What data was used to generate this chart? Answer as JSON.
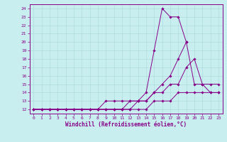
{
  "xlabel": "Windchill (Refroidissement éolien,°C)",
  "background_color": "#c8eef0",
  "grid_color": "#b0dde0",
  "line_color": "#880088",
  "ylim": [
    11.5,
    24.5
  ],
  "xlim": [
    -0.5,
    23.5
  ],
  "yticks": [
    12,
    13,
    14,
    15,
    16,
    17,
    18,
    19,
    20,
    21,
    22,
    23,
    24
  ],
  "xticks": [
    0,
    1,
    2,
    3,
    4,
    5,
    6,
    7,
    8,
    9,
    10,
    11,
    12,
    13,
    14,
    15,
    16,
    17,
    18,
    19,
    20,
    21,
    22,
    23
  ],
  "series": [
    [
      12,
      12,
      12,
      12,
      12,
      12,
      12,
      12,
      12,
      12,
      12,
      12,
      12,
      12,
      12,
      13,
      13,
      13,
      14,
      14,
      14,
      14,
      14,
      14
    ],
    [
      12,
      12,
      12,
      12,
      12,
      12,
      12,
      12,
      12,
      13,
      13,
      13,
      13,
      13,
      13,
      14,
      15,
      16,
      18,
      20,
      15,
      15,
      15,
      15
    ],
    [
      12,
      12,
      12,
      12,
      12,
      12,
      12,
      12,
      12,
      12,
      12,
      12,
      12,
      13,
      13,
      14,
      14,
      15,
      15,
      17,
      18,
      15,
      14,
      14
    ],
    [
      12,
      12,
      12,
      12,
      12,
      12,
      12,
      12,
      12,
      12,
      12,
      12,
      13,
      13,
      14,
      19,
      24,
      23,
      23,
      20,
      null,
      null,
      null,
      null
    ]
  ]
}
